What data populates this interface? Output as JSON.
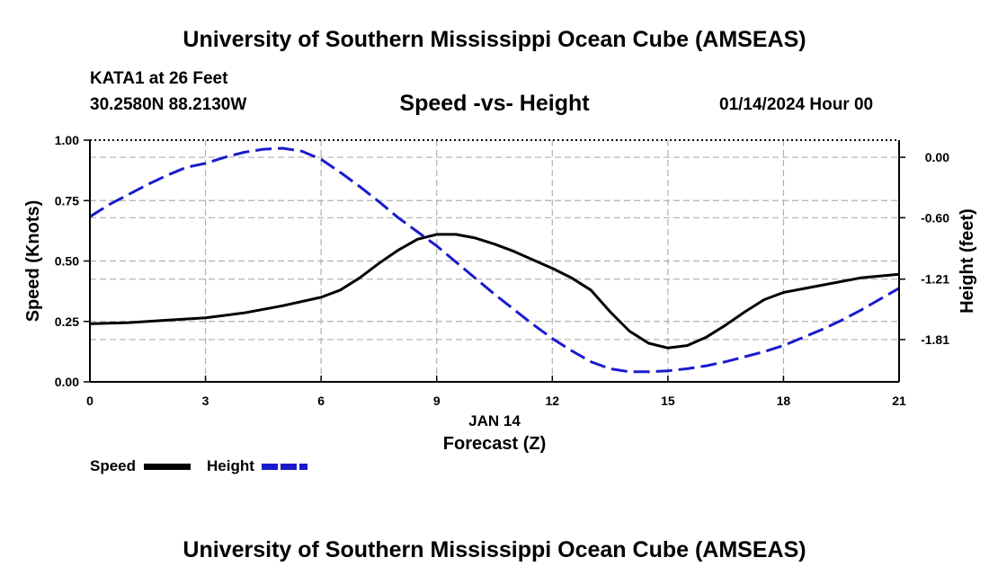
{
  "page": {
    "title_top": "University of Southern Mississippi Ocean Cube (AMSEAS)",
    "title_bottom": "University of Southern Mississippi Ocean Cube (AMSEAS)",
    "station": "KATA1 at 26 Feet",
    "coords": "30.2580N  88.2130W",
    "subtitle": "Speed -vs- Height",
    "date": "01/14/2024 Hour 00"
  },
  "legend": {
    "speed_label": "Speed",
    "height_label": "Height"
  },
  "colors": {
    "speed": "#000000",
    "height": "#1a1acc",
    "grid": "#b0b0b0"
  },
  "chart_data": {
    "type": "line",
    "title": "Speed -vs- Height",
    "xlabel": "Forecast (Z)",
    "xlabel_date": "JAN 14",
    "ylabel": "Speed (Knots)",
    "y2label": "Height (feet)",
    "xlim": [
      0,
      21
    ],
    "ylim": [
      0,
      1
    ],
    "y2lim": [
      -2.23,
      0.17
    ],
    "x_ticks": [
      0,
      3,
      6,
      9,
      12,
      15,
      18,
      21
    ],
    "x_tick_labels": [
      "0",
      "3",
      "6",
      "9",
      "12",
      "15",
      "18",
      "21"
    ],
    "y_ticks": [
      0,
      0.25,
      0.5,
      0.75,
      1.0
    ],
    "y_tick_labels": [
      "0.00",
      "0.25",
      "0.50",
      "0.75",
      "1.00"
    ],
    "y2_ticks": [
      0.0,
      -0.6,
      -1.21,
      -1.81
    ],
    "y2_tick_labels": [
      "0.00",
      "-0.60",
      "-1.21",
      "-1.81"
    ],
    "grid": true,
    "series": [
      {
        "name": "Speed",
        "axis": "left",
        "style": "solid",
        "x": [
          0,
          1,
          2,
          3,
          4,
          5,
          6,
          6.5,
          7,
          7.5,
          8,
          8.5,
          9,
          9.5,
          10,
          10.5,
          11,
          11.5,
          12,
          12.5,
          13,
          13.5,
          14,
          14.5,
          15,
          15.5,
          16,
          16.5,
          17,
          17.5,
          18,
          19,
          20,
          21
        ],
        "values": [
          0.24,
          0.245,
          0.255,
          0.265,
          0.285,
          0.315,
          0.35,
          0.38,
          0.43,
          0.49,
          0.545,
          0.59,
          0.61,
          0.61,
          0.595,
          0.57,
          0.54,
          0.505,
          0.47,
          0.43,
          0.38,
          0.29,
          0.21,
          0.16,
          0.14,
          0.15,
          0.185,
          0.235,
          0.29,
          0.34,
          0.37,
          0.4,
          0.43,
          0.445
        ]
      },
      {
        "name": "Height",
        "axis": "right",
        "style": "dashed",
        "x": [
          0,
          0.5,
          1,
          1.5,
          2,
          2.5,
          3,
          3.5,
          4,
          4.5,
          5,
          5.5,
          6,
          6.5,
          7,
          7.5,
          8,
          8.5,
          9,
          9.5,
          10,
          10.5,
          11,
          11.5,
          12,
          12.5,
          13,
          13.5,
          14,
          14.5,
          15,
          15.5,
          16,
          16.5,
          17,
          17.5,
          18,
          18.5,
          19,
          19.5,
          20,
          20.5,
          21
        ],
        "values": [
          -0.59,
          -0.47,
          -0.37,
          -0.27,
          -0.18,
          -0.1,
          -0.06,
          0.0,
          0.05,
          0.08,
          0.09,
          0.06,
          -0.02,
          -0.15,
          -0.29,
          -0.44,
          -0.6,
          -0.74,
          -0.88,
          -1.04,
          -1.2,
          -1.36,
          -1.51,
          -1.66,
          -1.8,
          -1.92,
          -2.03,
          -2.1,
          -2.13,
          -2.13,
          -2.12,
          -2.1,
          -2.07,
          -2.03,
          -1.98,
          -1.93,
          -1.87,
          -1.79,
          -1.71,
          -1.62,
          -1.52,
          -1.41,
          -1.3
        ]
      }
    ]
  }
}
